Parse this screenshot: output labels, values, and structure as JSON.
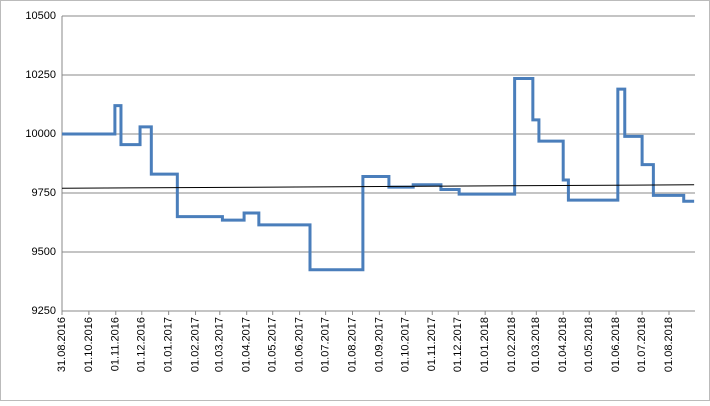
{
  "chart_data": {
    "type": "line",
    "step": true,
    "series": [
      {
        "color": "#4a7ebb",
        "x": [
          "31.08.2016",
          "31.10.2016",
          "07.11.2016",
          "29.11.2016",
          "12.12.2016",
          "11.01.2017",
          "04.03.2017",
          "29.03.2017",
          "15.04.2017",
          "13.06.2017",
          "13.08.2017",
          "12.09.2017",
          "10.10.2017",
          "11.11.2017",
          "02.12.2017",
          "04.02.2018",
          "25.02.2018",
          "04.03.2018",
          "01.04.2018",
          "07.04.2018",
          "03.06.2018",
          "11.06.2018",
          "01.07.2018",
          "14.07.2018",
          "18.08.2018",
          "30.08.2018"
        ],
        "values": [
          10000,
          10120,
          9955,
          10030,
          9830,
          9650,
          9635,
          9665,
          9615,
          9425,
          9820,
          9775,
          9785,
          9765,
          9745,
          10235,
          10060,
          9970,
          9805,
          9720,
          10190,
          9990,
          9870,
          9740,
          9715,
          9715
        ]
      },
      {
        "color": "#000000",
        "x": [
          "31.08.2016",
          "30.08.2018"
        ],
        "values": [
          9770,
          9785
        ]
      }
    ],
    "xlim": [
      "31.08.2016",
      "31.08.2018"
    ],
    "xticks": [
      "31.08.2016",
      "01.10.2016",
      "01.11.2016",
      "01.12.2016",
      "01.01.2017",
      "01.02.2017",
      "01.03.2017",
      "01.04.2017",
      "01.05.2017",
      "01.06.2017",
      "01.07.2017",
      "01.08.2017",
      "01.09.2017",
      "01.10.2017",
      "01.11.2017",
      "01.12.2017",
      "01.01.2018",
      "01.02.2018",
      "01.03.2018",
      "01.04.2018",
      "01.05.2018",
      "01.06.2018",
      "01.07.2018",
      "01.08.2018"
    ],
    "ylim": [
      9250,
      10500
    ],
    "yticks": [
      9250,
      9500,
      9750,
      10000,
      10250,
      10500
    ],
    "grid": true
  }
}
